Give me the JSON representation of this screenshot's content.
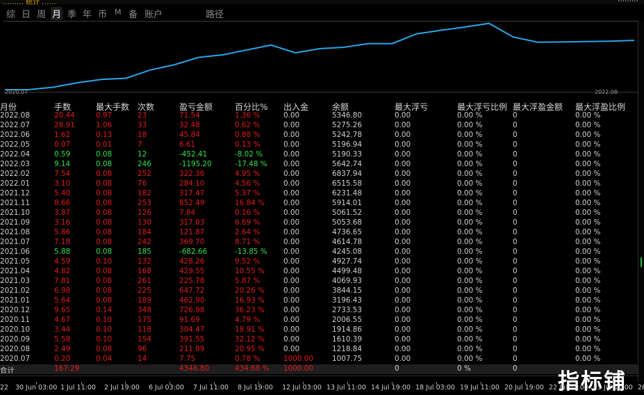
{
  "window": {
    "title": "……… 统计 ……",
    "url": "………"
  },
  "tabs": [
    {
      "label": "综",
      "active": false
    },
    {
      "label": "日",
      "active": false
    },
    {
      "label": "周",
      "active": false
    },
    {
      "label": "月",
      "active": true
    },
    {
      "label": "季",
      "active": false
    },
    {
      "label": "年",
      "active": false
    },
    {
      "label": "币",
      "active": false
    },
    {
      "label": "M",
      "active": false
    },
    {
      "label": "备",
      "active": false
    },
    {
      "label": "账户",
      "active": false
    },
    {
      "label": "路径",
      "active": false
    }
  ],
  "chart_data": {
    "type": "line",
    "x_start_label": "2020.07",
    "x_end_label": "2022.08",
    "line_color": "#2aa6e8",
    "series": [
      {
        "values": [
          1000.0,
          1007.75,
          1218.84,
          1610.39,
          1914.86,
          2006.55,
          2733.53,
          3196.43,
          3844.15,
          4069.93,
          4499.48,
          4927.74,
          4245.08,
          4614.78,
          4736.65,
          5053.68,
          5061.52,
          5914.01,
          6231.48,
          6515.58,
          6837.94,
          5642.74,
          5190.33,
          5196.94,
          5242.78,
          5275.26,
          5346.8
        ]
      }
    ],
    "ylim": [
      1000,
      7000
    ],
    "grid": false
  },
  "table": {
    "headers": [
      "月份",
      "手数",
      "最大手数",
      "次数",
      "盈亏金额",
      "百分比%",
      "出入金",
      "余额",
      "最大浮亏",
      "最大浮亏比例",
      "最大浮盈金额",
      "最大浮盈比例"
    ],
    "rows": [
      {
        "month": "2022.08",
        "lots": "20.44",
        "max_lots": "0.97",
        "trades": "23",
        "pnl": "71.54",
        "pct": "1.36 %",
        "flow": "0.00",
        "balance": "5346.80",
        "max_dd": "0.00",
        "max_dd_pct": "0.00 %",
        "max_fp": "0",
        "max_fp_pct": "0.00 %",
        "color": "red"
      },
      {
        "month": "2022.07",
        "lots": "28.91",
        "max_lots": "1.06",
        "trades": "33",
        "pnl": "32.48",
        "pct": "0.62 %",
        "flow": "0.00",
        "balance": "5275.26",
        "max_dd": "0.00",
        "max_dd_pct": "0.00 %",
        "max_fp": "0",
        "max_fp_pct": "0.00 %",
        "color": "red"
      },
      {
        "month": "2022.06",
        "lots": "1.62",
        "max_lots": "0.13",
        "trades": "18",
        "pnl": "45.84",
        "pct": "0.88 %",
        "flow": "0.00",
        "balance": "5242.78",
        "max_dd": "0.00",
        "max_dd_pct": "0.00 %",
        "max_fp": "0",
        "max_fp_pct": "0.00 %",
        "color": "red"
      },
      {
        "month": "2022.05",
        "lots": "0.07",
        "max_lots": "0.01",
        "trades": "7",
        "pnl": "6.61",
        "pct": "0.13 %",
        "flow": "0.00",
        "balance": "5196.94",
        "max_dd": "0.00",
        "max_dd_pct": "0.00 %",
        "max_fp": "0",
        "max_fp_pct": "0.00 %",
        "color": "red"
      },
      {
        "month": "2022.04",
        "lots": "0.59",
        "max_lots": "0.08",
        "trades": "12",
        "pnl": "-452.41",
        "pct": "-8.02 %",
        "flow": "0.00",
        "balance": "5190.33",
        "max_dd": "0.00",
        "max_dd_pct": "0.00 %",
        "max_fp": "0",
        "max_fp_pct": "0.00 %",
        "color": "green"
      },
      {
        "month": "2022.03",
        "lots": "9.14",
        "max_lots": "0.08",
        "trades": "246",
        "pnl": "-1195.20",
        "pct": "-17.48 %",
        "flow": "0.00",
        "balance": "5642.74",
        "max_dd": "0.00",
        "max_dd_pct": "0.00 %",
        "max_fp": "0",
        "max_fp_pct": "0.00 %",
        "color": "green"
      },
      {
        "month": "2022.02",
        "lots": "7.54",
        "max_lots": "0.08",
        "trades": "252",
        "pnl": "322.36",
        "pct": "4.95 %",
        "flow": "0.00",
        "balance": "6837.94",
        "max_dd": "0.00",
        "max_dd_pct": "0.00 %",
        "max_fp": "0",
        "max_fp_pct": "0.00 %",
        "color": "red"
      },
      {
        "month": "2022.01",
        "lots": "3.10",
        "max_lots": "0.08",
        "trades": "76",
        "pnl": "284.10",
        "pct": "4.56 %",
        "flow": "0.00",
        "balance": "6515.58",
        "max_dd": "0.00",
        "max_dd_pct": "0.00 %",
        "max_fp": "0",
        "max_fp_pct": "0.00 %",
        "color": "red"
      },
      {
        "month": "2021.12",
        "lots": "5.40",
        "max_lots": "0.08",
        "trades": "182",
        "pnl": "317.47",
        "pct": "5.37 %",
        "flow": "0.00",
        "balance": "6231.48",
        "max_dd": "0.00",
        "max_dd_pct": "0.00 %",
        "max_fp": "0",
        "max_fp_pct": "0.00 %",
        "color": "red"
      },
      {
        "month": "2021.11",
        "lots": "8.66",
        "max_lots": "0.08",
        "trades": "253",
        "pnl": "852.49",
        "pct": "16.84 %",
        "flow": "0.00",
        "balance": "5914.01",
        "max_dd": "0.00",
        "max_dd_pct": "0.00 %",
        "max_fp": "0",
        "max_fp_pct": "0.00 %",
        "color": "red"
      },
      {
        "month": "2021.10",
        "lots": "3.87",
        "max_lots": "0.08",
        "trades": "126",
        "pnl": "7.84",
        "pct": "0.16 %",
        "flow": "0.00",
        "balance": "5061.52",
        "max_dd": "0.00",
        "max_dd_pct": "0.00 %",
        "max_fp": "0",
        "max_fp_pct": "0.00 %",
        "color": "red"
      },
      {
        "month": "2021.09",
        "lots": "3.16",
        "max_lots": "0.08",
        "trades": "130",
        "pnl": "317.03",
        "pct": "6.69 %",
        "flow": "0.00",
        "balance": "5053.68",
        "max_dd": "0.00",
        "max_dd_pct": "0.00 %",
        "max_fp": "0",
        "max_fp_pct": "0.00 %",
        "color": "red"
      },
      {
        "month": "2021.08",
        "lots": "5.86",
        "max_lots": "0.08",
        "trades": "184",
        "pnl": "121.87",
        "pct": "2.64 %",
        "flow": "0.00",
        "balance": "4736.65",
        "max_dd": "0.00",
        "max_dd_pct": "0.00 %",
        "max_fp": "0",
        "max_fp_pct": "0.00 %",
        "color": "red"
      },
      {
        "month": "2021.07",
        "lots": "7.18",
        "max_lots": "0.08",
        "trades": "242",
        "pnl": "369.70",
        "pct": "8.71 %",
        "flow": "0.00",
        "balance": "4614.78",
        "max_dd": "0.00",
        "max_dd_pct": "0.00 %",
        "max_fp": "0",
        "max_fp_pct": "0.00 %",
        "color": "red"
      },
      {
        "month": "2021.06",
        "lots": "5.88",
        "max_lots": "0.08",
        "trades": "185",
        "pnl": "-682.66",
        "pct": "-13.85 %",
        "flow": "0.00",
        "balance": "4245.08",
        "max_dd": "0.00",
        "max_dd_pct": "0.00 %",
        "max_fp": "0",
        "max_fp_pct": "0.00 %",
        "color": "green"
      },
      {
        "month": "2021.05",
        "lots": "4.59",
        "max_lots": "0.10",
        "trades": "132",
        "pnl": "428.26",
        "pct": "9.52 %",
        "flow": "0.00",
        "balance": "4927.74",
        "max_dd": "0.00",
        "max_dd_pct": "0.00 %",
        "max_fp": "0",
        "max_fp_pct": "0.00 %",
        "color": "red"
      },
      {
        "month": "2021.04",
        "lots": "4.82",
        "max_lots": "0.08",
        "trades": "168",
        "pnl": "429.55",
        "pct": "10.55 %",
        "flow": "0.00",
        "balance": "4499.48",
        "max_dd": "0.00",
        "max_dd_pct": "0.00 %",
        "max_fp": "0",
        "max_fp_pct": "0.00 %",
        "color": "red"
      },
      {
        "month": "2021.03",
        "lots": "7.81",
        "max_lots": "0.08",
        "trades": "261",
        "pnl": "225.78",
        "pct": "5.87 %",
        "flow": "0.00",
        "balance": "4069.93",
        "max_dd": "0.00",
        "max_dd_pct": "0.00 %",
        "max_fp": "0",
        "max_fp_pct": "0.00 %",
        "color": "red"
      },
      {
        "month": "2021.02",
        "lots": "6.98",
        "max_lots": "0.08",
        "trades": "225",
        "pnl": "647.72",
        "pct": "20.26 %",
        "flow": "0.00",
        "balance": "3844.15",
        "max_dd": "0.00",
        "max_dd_pct": "0.00 %",
        "max_fp": "0",
        "max_fp_pct": "0.00 %",
        "color": "red"
      },
      {
        "month": "2021.01",
        "lots": "5.64",
        "max_lots": "0.08",
        "trades": "189",
        "pnl": "462.90",
        "pct": "16.93 %",
        "flow": "0.00",
        "balance": "3196.43",
        "max_dd": "0.00",
        "max_dd_pct": "0.00 %",
        "max_fp": "0",
        "max_fp_pct": "0.00 %",
        "color": "red"
      },
      {
        "month": "2020.12",
        "lots": "9.65",
        "max_lots": "0.14",
        "trades": "348",
        "pnl": "726.98",
        "pct": "36.23 %",
        "flow": "0.00",
        "balance": "2733.53",
        "max_dd": "0.00",
        "max_dd_pct": "0.00 %",
        "max_fp": "0",
        "max_fp_pct": "0.00 %",
        "color": "red"
      },
      {
        "month": "2020.11",
        "lots": "4.67",
        "max_lots": "0.10",
        "trades": "175",
        "pnl": "91.69",
        "pct": "4.79 %",
        "flow": "0.00",
        "balance": "2006.55",
        "max_dd": "0.00",
        "max_dd_pct": "0.00 %",
        "max_fp": "0",
        "max_fp_pct": "0.00 %",
        "color": "red"
      },
      {
        "month": "2020.10",
        "lots": "3.44",
        "max_lots": "0.10",
        "trades": "118",
        "pnl": "304.47",
        "pct": "18.91 %",
        "flow": "0.00",
        "balance": "1914.86",
        "max_dd": "0.00",
        "max_dd_pct": "0.00 %",
        "max_fp": "0",
        "max_fp_pct": "0.00 %",
        "color": "red"
      },
      {
        "month": "2020.09",
        "lots": "5.58",
        "max_lots": "0.10",
        "trades": "154",
        "pnl": "391.55",
        "pct": "32.12 %",
        "flow": "0.00",
        "balance": "1610.39",
        "max_dd": "0.00",
        "max_dd_pct": "0.00 %",
        "max_fp": "0",
        "max_fp_pct": "0.00 %",
        "color": "red"
      },
      {
        "month": "2020.08",
        "lots": "2.49",
        "max_lots": "0.08",
        "trades": "96",
        "pnl": "211.09",
        "pct": "20.95 %",
        "flow": "0.00",
        "balance": "1218.84",
        "max_dd": "0.00",
        "max_dd_pct": "0.00 %",
        "max_fp": "0",
        "max_fp_pct": "0.00 %",
        "color": "red"
      },
      {
        "month": "2020.07",
        "lots": "0.20",
        "max_lots": "0.04",
        "trades": "14",
        "pnl": "7.75",
        "pct": "0.78 %",
        "flow": "1000.00",
        "balance": "1007.75",
        "max_dd": "0.00",
        "max_dd_pct": "0.00 %",
        "max_fp": "0",
        "max_fp_pct": "0.00 %",
        "color": "red"
      }
    ],
    "total": {
      "label": "合计",
      "lots": "167.29",
      "pnl": "4346.80",
      "pct": "434.68 %",
      "flow": "1000.00",
      "max_dd": "0",
      "max_dd_pct": "0 %",
      "max_fp": "0"
    }
  },
  "timeline": [
    "22",
    "30 Jun 03:00",
    "1 Jul 11:00",
    "2 Jul 19:00",
    "6 Jul 03:00",
    "7 Jul 11:00",
    "8 Jul 19:00",
    "12 Jul 03:00",
    "13 Jul 11:00",
    "14 Jul 19:00",
    "18 Jul 03:00",
    "19 Jul 11:00",
    "20 Jul 19:00",
    "22 Jul 03:00",
    "25 Jul 11:00",
    "26"
  ],
  "watermark": "指标铺",
  "colors": {
    "positive": "#e21b1b",
    "negative": "#33e14a",
    "line": "#2aa6e8",
    "background": "#000000"
  }
}
